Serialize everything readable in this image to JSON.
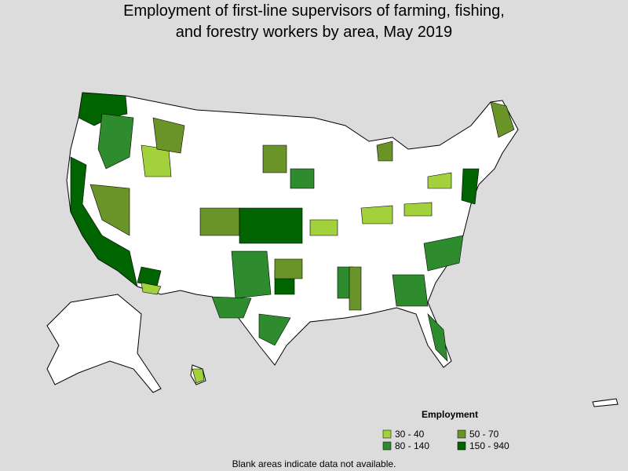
{
  "title_lines": [
    "Employment of first-line supervisors of farming, fishing,",
    "and forestry workers by area, May 2019"
  ],
  "legend": {
    "title": "Employment",
    "items": [
      {
        "label": "30 - 40",
        "color": "#a3d13b"
      },
      {
        "label": "50 - 70",
        "color": "#6b9428"
      },
      {
        "label": "80 - 140",
        "color": "#2e8b2e"
      },
      {
        "label": "150 - 940",
        "color": "#006400"
      }
    ]
  },
  "note": "Blank areas indicate data not available."
}
